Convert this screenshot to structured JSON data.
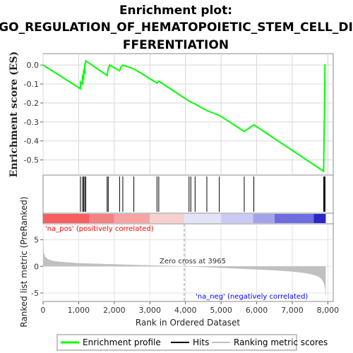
{
  "chart_data": {
    "type": "line",
    "title_lines": [
      "Enrichment plot:",
      "GO_REGULATION_OF_HEMATOPOIETIC_STEM_CELL_DI",
      "FFERENTIATION"
    ],
    "colors": {
      "es_line": "#00ff00",
      "hit_line": "#000000",
      "metric_fill": "#c0c0c0",
      "pos_label": "#ff0000",
      "neg_label": "#0000ff",
      "zero_line": "#bbbbbb"
    },
    "es_panel": {
      "ylabel": "Enrichment score (ES)",
      "ylim": [
        -0.58,
        0.06
      ],
      "yticks": [
        0.0,
        -0.1,
        -0.2,
        -0.3,
        -0.4,
        -0.5
      ],
      "ytick_labels": [
        "0.0",
        "-0.1",
        "-0.2",
        "-0.3",
        "-0.4",
        "-0.5"
      ],
      "grid": true,
      "series": [
        {
          "x": [
            0,
            1050,
            1050,
            1110,
            1110,
            1140,
            1140,
            1170,
            1170,
            1200,
            1200,
            1800,
            1800,
            1830,
            1830,
            1870,
            1870,
            2150,
            2150,
            2190,
            2190,
            2240,
            2240,
            2550,
            2550,
            3200,
            3200,
            3250,
            3250,
            4100,
            4100,
            4150,
            4150,
            4270,
            4270,
            4600,
            4600,
            4950,
            4950,
            5650,
            5650,
            5920,
            5920,
            7880,
            7880,
            7900,
            7900,
            7920
          ],
          "y": [
            0.0,
            -0.125,
            -0.09,
            -0.1,
            -0.06,
            -0.07,
            -0.03,
            -0.04,
            0.0,
            0.022,
            0.022,
            -0.055,
            -0.055,
            -0.02,
            -0.02,
            0.0,
            0.0,
            -0.03,
            -0.03,
            -0.01,
            -0.01,
            0.0,
            0.0,
            -0.02,
            -0.02,
            -0.095,
            -0.095,
            -0.085,
            -0.085,
            -0.19,
            -0.19,
            -0.195,
            -0.195,
            -0.205,
            -0.205,
            -0.24,
            -0.24,
            -0.265,
            -0.265,
            -0.35,
            -0.35,
            -0.315,
            -0.315,
            -0.56,
            -0.56,
            -0.295,
            -0.295,
            0.005
          ]
        }
      ]
    },
    "hits": [
      1050,
      1110,
      1140,
      1170,
      1200,
      1800,
      1830,
      2150,
      2240,
      2550,
      3200,
      3250,
      4100,
      4150,
      4270,
      4600,
      4950,
      5650,
      5920,
      7880,
      7900,
      7920
    ],
    "ranked_panel": {
      "ylabel_lines": [
        "Ranked list metric (PreRanked)"
      ],
      "ylim": [
        -6.6,
        8.0
      ],
      "yticks": [
        5,
        0,
        -5
      ],
      "ytick_labels": [
        "5",
        "0",
        "-5"
      ],
      "zero_cross_label": "Zero cross at 3965",
      "zero_cross_x": 3965,
      "pos_label": "'na_pos' (positively correlated)",
      "neg_label": "'na_neg' (negatively correlated)",
      "metric_profile": {
        "x": [
          0,
          20,
          60,
          150,
          300,
          600,
          1000,
          1500,
          2000,
          2500,
          3000,
          3500,
          3965,
          4500,
          5000,
          5500,
          6000,
          6500,
          7000,
          7300,
          7500,
          7650,
          7750,
          7820,
          7870,
          7900,
          7920,
          7935,
          7940
        ],
        "y": [
          6.5,
          2.6,
          1.8,
          1.3,
          1.0,
          0.8,
          0.6,
          0.5,
          0.4,
          0.3,
          0.2,
          0.1,
          0.0,
          -0.15,
          -0.3,
          -0.45,
          -0.6,
          -0.75,
          -1.0,
          -1.2,
          -1.45,
          -1.7,
          -2.0,
          -2.4,
          -2.9,
          -3.5,
          -4.3,
          -5.5,
          -6.2
        ]
      }
    },
    "xaxis": {
      "xlabel": "Rank in Ordered Dataset",
      "xlim": [
        0,
        8150
      ],
      "xticks": [
        0,
        1000,
        2000,
        3000,
        4000,
        5000,
        6000,
        7000,
        8000
      ],
      "xtick_labels": [
        "0",
        "1,000",
        "2,000",
        "3,000",
        "4,000",
        "5,000",
        "6,000",
        "7,000",
        "8,000"
      ],
      "n_genes": 7940
    },
    "heat_bar": {
      "segments": [
        {
          "x0": 0,
          "x1": 1300,
          "color": "#f55f5f"
        },
        {
          "x0": 1300,
          "x1": 2000,
          "color": "#f58282"
        },
        {
          "x0": 2000,
          "x1": 3000,
          "color": "#f7a3a3"
        },
        {
          "x0": 3000,
          "x1": 3965,
          "color": "#f8cfcf"
        },
        {
          "x0": 3965,
          "x1": 5000,
          "color": "#e3e3f7"
        },
        {
          "x0": 5000,
          "x1": 5900,
          "color": "#c9c9f3"
        },
        {
          "x0": 5900,
          "x1": 6500,
          "color": "#a3a3ec"
        },
        {
          "x0": 6500,
          "x1": 7600,
          "color": "#6d6de0"
        },
        {
          "x0": 7600,
          "x1": 7940,
          "color": "#2828c8"
        }
      ]
    },
    "legend": {
      "placement": "bottom",
      "items": [
        {
          "label": "Enrichment profile",
          "color": "#00ff00",
          "style": "line"
        },
        {
          "label": "Hits",
          "color": "#000000",
          "style": "line"
        },
        {
          "label": "Ranking metric scores",
          "color": "#c0c0c0",
          "style": "line"
        }
      ]
    }
  }
}
